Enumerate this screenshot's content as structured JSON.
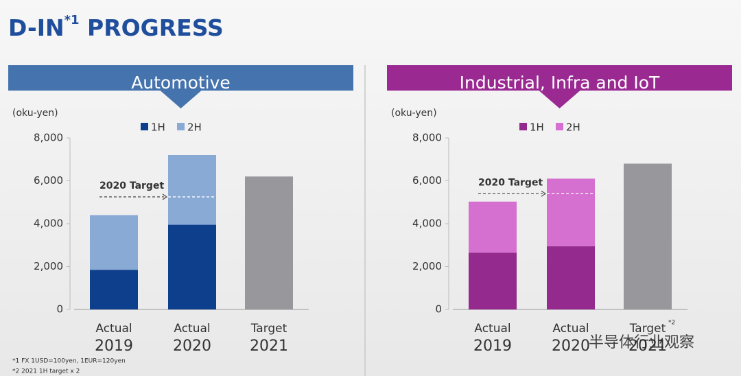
{
  "title_parts": [
    "D-IN",
    "*1",
    " PROGRESS"
  ],
  "footnotes": [
    "*1  FX 1USD=100yen, 1EUR=120yen",
    "*2  2021 1H target x 2"
  ],
  "watermark": "半导体行业观察",
  "chart_data": [
    {
      "type": "bar",
      "stacked": true,
      "title": "Automotive",
      "title_color": "#4573ad",
      "unit_label": "(oku-yen)",
      "categories": [
        [
          "Actual",
          "2019"
        ],
        [
          "Actual",
          "2020"
        ],
        [
          "Target",
          "2021"
        ]
      ],
      "series": [
        {
          "name": "1H",
          "color": "#0e3f8c",
          "values": [
            1850,
            3950,
            null
          ]
        },
        {
          "name": "2H",
          "color": "#8aaad6",
          "values": [
            2550,
            3250,
            null
          ]
        }
      ],
      "target": {
        "color": "#98989c",
        "values": [
          null,
          null,
          6200
        ]
      },
      "annotation": {
        "text": "2020 Target",
        "value": 5250,
        "category_index": 1
      },
      "ylim": [
        0,
        8000
      ],
      "yticks": [
        0,
        {
          "value": 2000,
          "label": "2,000"
        },
        {
          "value": 4000,
          "label": "4,000"
        },
        {
          "value": 6000,
          "label": "6,000"
        },
        {
          "value": 8000,
          "label": "8,000"
        }
      ]
    },
    {
      "type": "bar",
      "stacked": true,
      "title": "Industrial, Infra and IoT",
      "title_color": "#9a2a92",
      "unit_label": "(oku-yen)",
      "categories": [
        [
          "Actual",
          "2019"
        ],
        [
          "Actual",
          "2020"
        ],
        [
          "Target",
          "2021",
          "*2"
        ]
      ],
      "series": [
        {
          "name": "1H",
          "color": "#952a8e",
          "values": [
            2650,
            2950,
            null
          ]
        },
        {
          "name": "2H",
          "color": "#d570d0",
          "values": [
            2380,
            3150,
            null
          ]
        }
      ],
      "target": {
        "color": "#98989c",
        "values": [
          null,
          null,
          6800
        ]
      },
      "annotation": {
        "text": "2020 Target",
        "value": 5400,
        "category_index": 1
      },
      "ylim": [
        0,
        8000
      ],
      "yticks": [
        0,
        {
          "value": 2000,
          "label": "2,000"
        },
        {
          "value": 4000,
          "label": "4,000"
        },
        {
          "value": 6000,
          "label": "6,000"
        },
        {
          "value": 8000,
          "label": "8,000"
        }
      ]
    }
  ]
}
